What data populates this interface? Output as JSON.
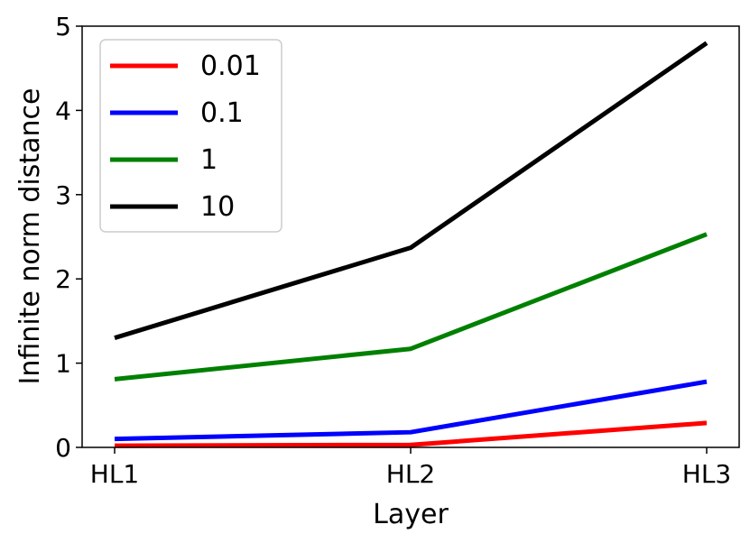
{
  "chart_data": {
    "type": "line",
    "categories": [
      "HL1",
      "HL2",
      "HL3"
    ],
    "series": [
      {
        "name": "0.01",
        "values": [
          0.02,
          0.03,
          0.29
        ],
        "color": "#ff0000"
      },
      {
        "name": "0.1",
        "values": [
          0.1,
          0.18,
          0.78
        ],
        "color": "#0000ff"
      },
      {
        "name": "1",
        "values": [
          0.81,
          1.17,
          2.53
        ],
        "color": "#008000"
      },
      {
        "name": "10",
        "values": [
          1.3,
          2.37,
          4.8
        ],
        "color": "#000000"
      }
    ],
    "xlabel": "Layer",
    "ylabel": "Infinite norm distance",
    "ylim": [
      0,
      5
    ],
    "yticks": [
      "0",
      "1",
      "2",
      "3",
      "4",
      "5"
    ],
    "grid": false,
    "legend_position": "upper left"
  }
}
